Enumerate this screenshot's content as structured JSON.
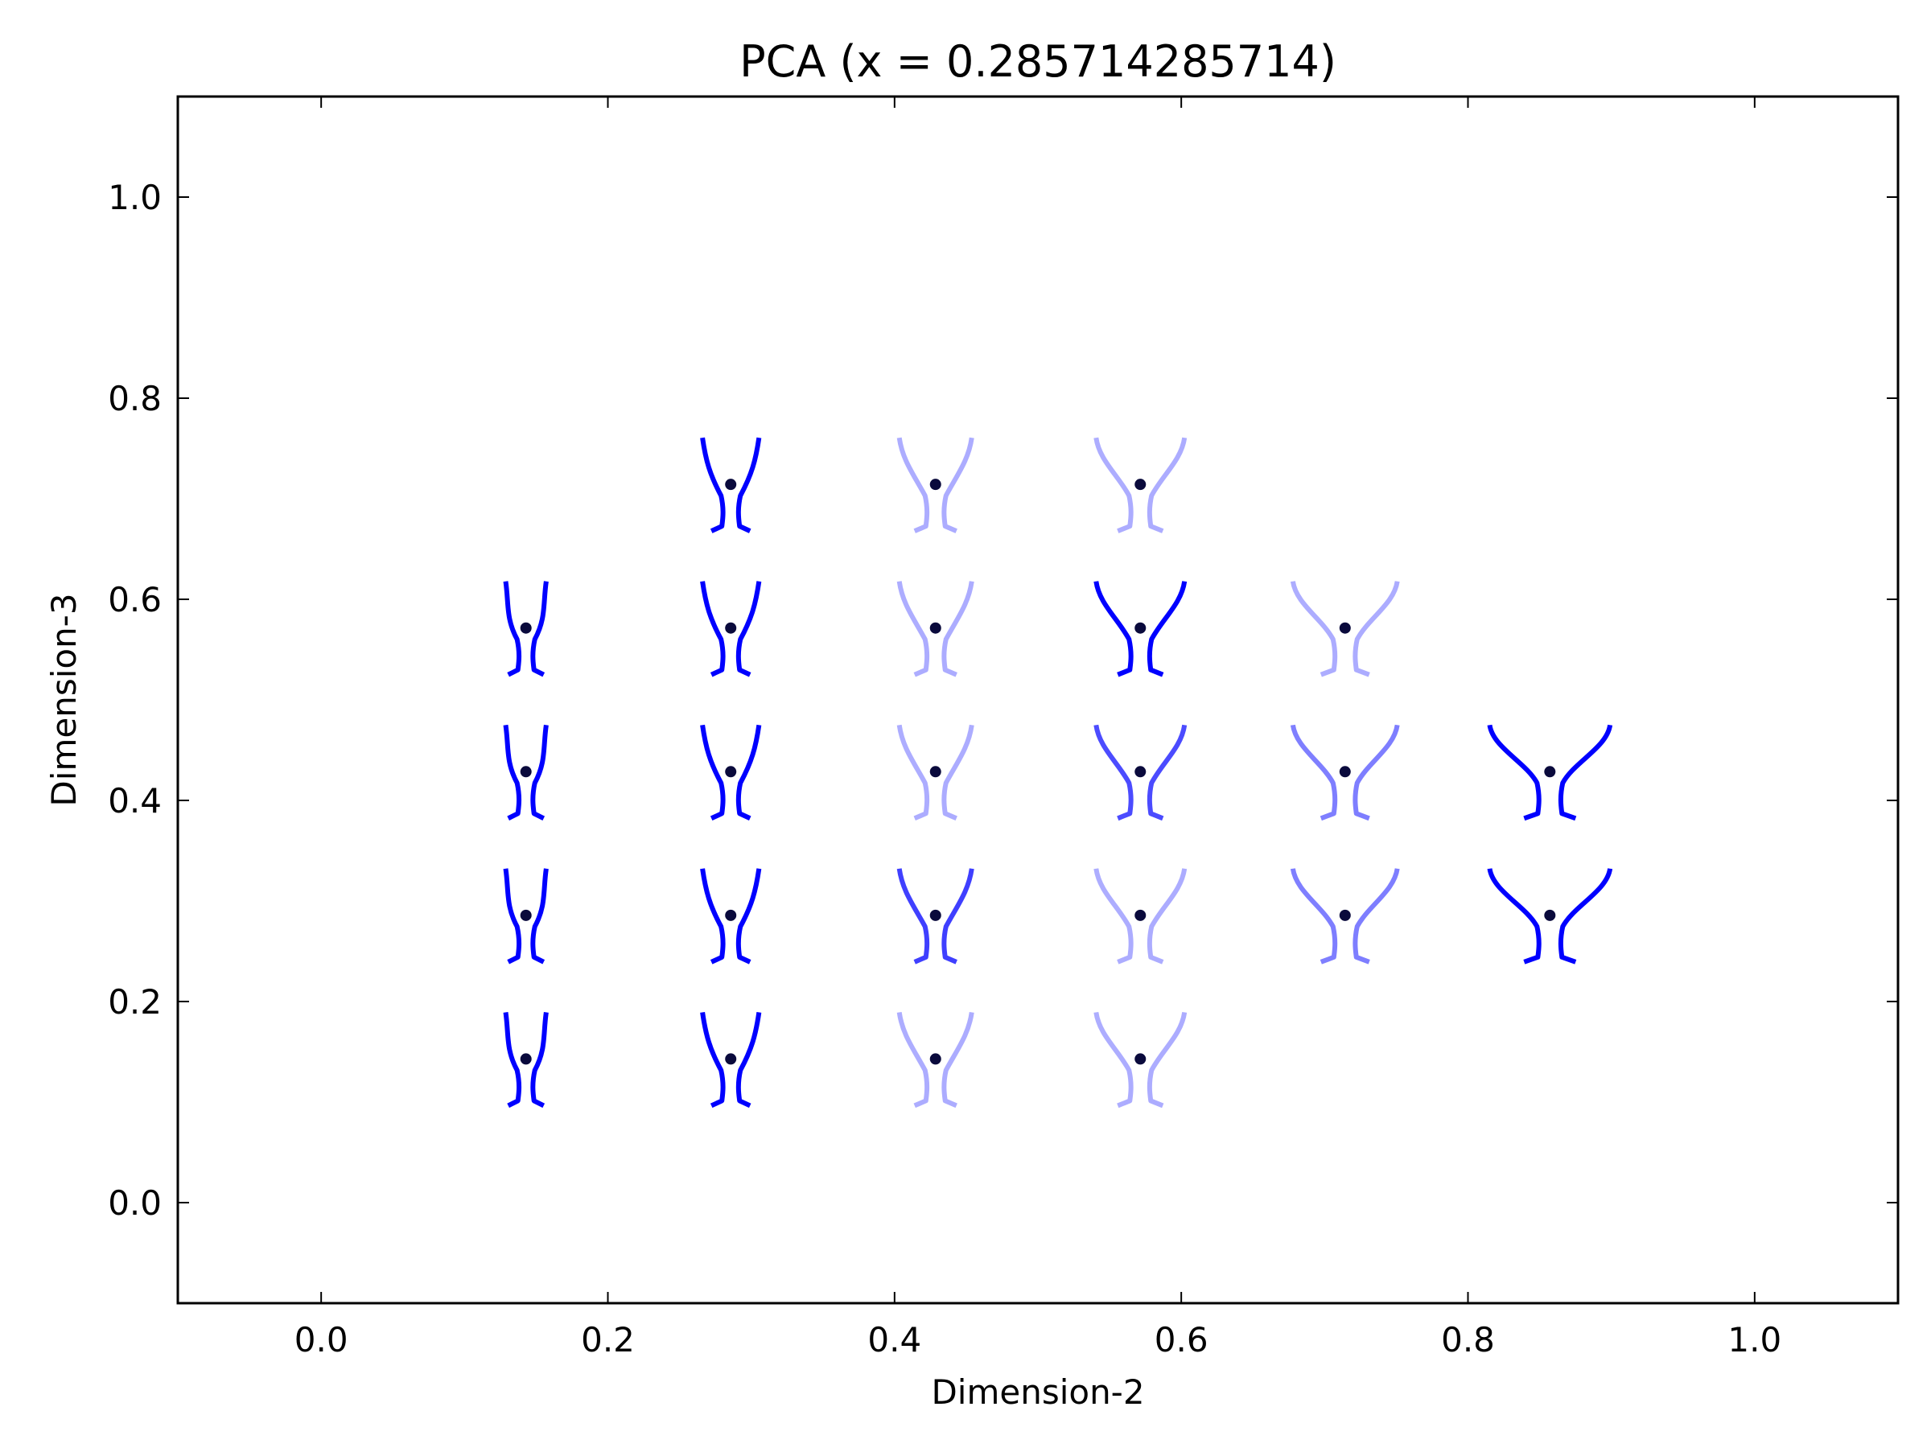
{
  "chart_data": {
    "type": "scatter",
    "title": "PCA (x = 0.285714285714)",
    "xlabel": "Dimension-2",
    "ylabel": "Dimension-3",
    "xlim": [
      -0.1,
      1.1
    ],
    "ylim": [
      -0.1,
      1.1
    ],
    "xticks": [
      "0.0",
      "0.2",
      "0.4",
      "0.6",
      "0.8",
      "1.0"
    ],
    "yticks": [
      "0.0",
      "0.2",
      "0.4",
      "0.6",
      "0.8",
      "1.0"
    ],
    "xtick_values": [
      0.0,
      0.2,
      0.4,
      0.6,
      0.8,
      1.0
    ],
    "ytick_values": [
      0.0,
      0.2,
      0.4,
      0.6,
      0.8,
      1.0
    ],
    "grid": false,
    "legend": "none",
    "marker_color": "#0a0a3c",
    "glyph_color": "#0000ff",
    "points": [
      {
        "x": 0.142857,
        "y": 0.142857,
        "opacity": 1.0
      },
      {
        "x": 0.142857,
        "y": 0.285714,
        "opacity": 1.0
      },
      {
        "x": 0.142857,
        "y": 0.428571,
        "opacity": 1.0
      },
      {
        "x": 0.142857,
        "y": 0.571429,
        "opacity": 1.0
      },
      {
        "x": 0.285714,
        "y": 0.142857,
        "opacity": 1.0
      },
      {
        "x": 0.285714,
        "y": 0.285714,
        "opacity": 1.0
      },
      {
        "x": 0.285714,
        "y": 0.428571,
        "opacity": 1.0
      },
      {
        "x": 0.285714,
        "y": 0.571429,
        "opacity": 1.0
      },
      {
        "x": 0.285714,
        "y": 0.714286,
        "opacity": 1.0
      },
      {
        "x": 0.428571,
        "y": 0.142857,
        "opacity": 0.32
      },
      {
        "x": 0.428571,
        "y": 0.285714,
        "opacity": 0.75
      },
      {
        "x": 0.428571,
        "y": 0.428571,
        "opacity": 0.32
      },
      {
        "x": 0.428571,
        "y": 0.571429,
        "opacity": 0.32
      },
      {
        "x": 0.428571,
        "y": 0.714286,
        "opacity": 0.32
      },
      {
        "x": 0.571429,
        "y": 0.142857,
        "opacity": 0.32
      },
      {
        "x": 0.571429,
        "y": 0.285714,
        "opacity": 0.32
      },
      {
        "x": 0.571429,
        "y": 0.428571,
        "opacity": 0.7
      },
      {
        "x": 0.571429,
        "y": 0.571429,
        "opacity": 1.0
      },
      {
        "x": 0.571429,
        "y": 0.714286,
        "opacity": 0.32
      },
      {
        "x": 0.714286,
        "y": 0.285714,
        "opacity": 0.5
      },
      {
        "x": 0.714286,
        "y": 0.428571,
        "opacity": 0.5
      },
      {
        "x": 0.714286,
        "y": 0.571429,
        "opacity": 0.32
      },
      {
        "x": 0.857143,
        "y": 0.285714,
        "opacity": 1.0
      },
      {
        "x": 0.857143,
        "y": 0.428571,
        "opacity": 1.0
      }
    ]
  }
}
